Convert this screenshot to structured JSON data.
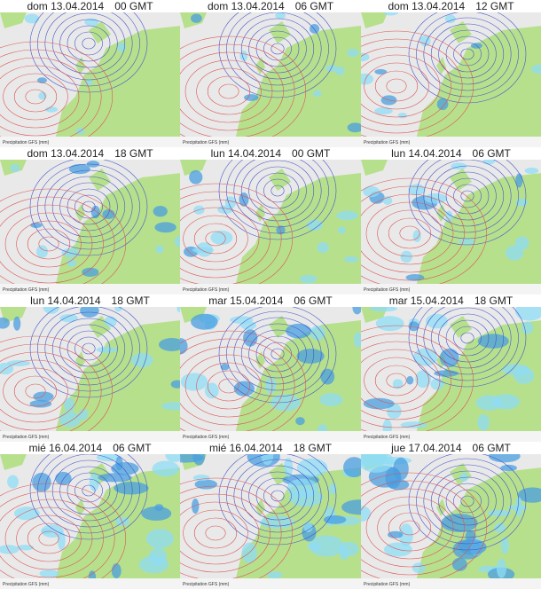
{
  "panels": [
    {
      "day": "dom 13.04.2014",
      "time": "00 GMT"
    },
    {
      "day": "dom 13.04.2014",
      "time": "06 GMT"
    },
    {
      "day": "dom 13.04.2014",
      "time": "12 GMT"
    },
    {
      "day": "dom 13.04.2014",
      "time": "18 GMT"
    },
    {
      "day": "lun 14.04.2014",
      "time": "00 GMT"
    },
    {
      "day": "lun 14.04.2014",
      "time": "06 GMT"
    },
    {
      "day": "lun 14.04.2014",
      "time": "18 GMT"
    },
    {
      "day": "mar 15.04.2014",
      "time": "06 GMT"
    },
    {
      "day": "mar 15.04.2014",
      "time": "18 GMT"
    },
    {
      "day": "mié 16.04.2014",
      "time": "06 GMT"
    },
    {
      "day": "mié 16.04.2014",
      "time": "18 GMT"
    },
    {
      "day": "jue 17.04.2014",
      "time": "06 GMT"
    }
  ],
  "footer": "Precipitation GFS (mm)"
}
